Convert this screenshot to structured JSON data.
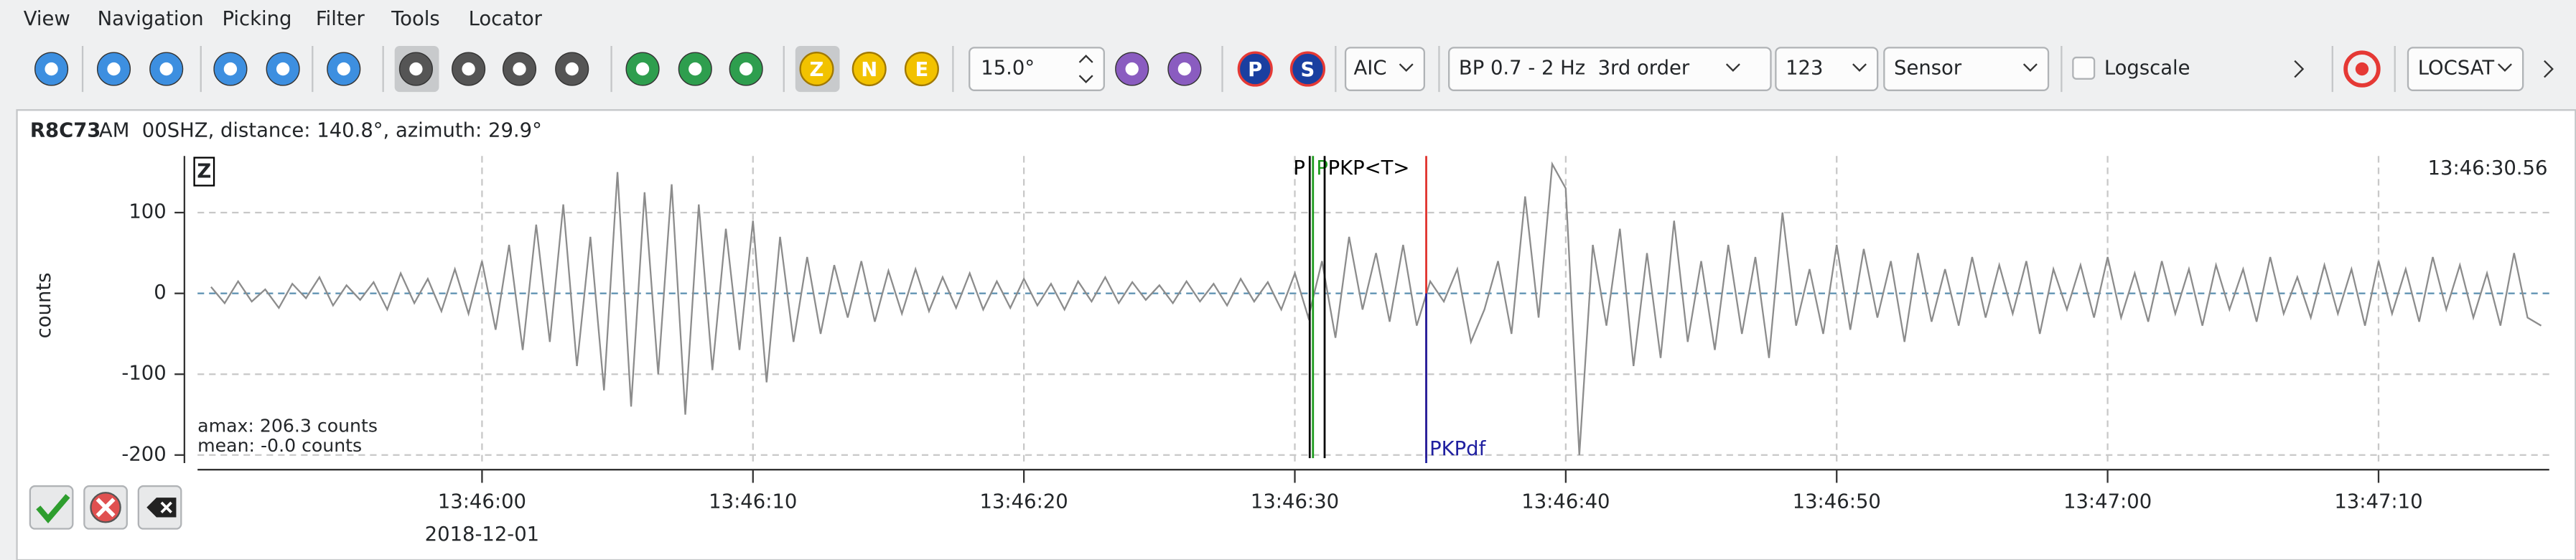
{
  "menu": [
    "View",
    "Navigation",
    "Picking",
    "Filter",
    "Tools",
    "Locator"
  ],
  "toolbar": {
    "component_buttons": [
      "Z",
      "N",
      "E"
    ],
    "angle": "15.0°",
    "picker": "AIC",
    "filter": "BP 0.7 - 2 Hz  3rd order",
    "stream": "123",
    "unit": "Sensor",
    "logscale": "Logscale",
    "phase_buttons": [
      "P",
      "S"
    ],
    "locator": "LOCSAT"
  },
  "trace": {
    "station": "R8C73",
    "info": "AM  00SHZ, distance: 140.8°, azimuth: 29.9°"
  },
  "chart_data": {
    "type": "line",
    "component": "Z",
    "time_label": "13:46:30.56",
    "y_label": "counts",
    "date_label": "2018-12-01",
    "annotations": [
      "amax: 206.3 counts",
      "mean: -0.0 counts"
    ],
    "color": "#8c8c8c",
    "xlim": [
      -10.5,
      76.3
    ],
    "ylim": [
      -210,
      170
    ],
    "xticks": [
      {
        "value": 0,
        "label": "13:46:00"
      },
      {
        "value": 10,
        "label": "13:46:10"
      },
      {
        "value": 20,
        "label": "13:46:20"
      },
      {
        "value": 30,
        "label": "13:46:30"
      },
      {
        "value": 40,
        "label": "13:46:40"
      },
      {
        "value": 50,
        "label": "13:46:50"
      },
      {
        "value": 60,
        "label": "13:47:00"
      },
      {
        "value": 70,
        "label": "13:47:10"
      }
    ],
    "yticks": [
      100,
      0,
      -100,
      -200
    ],
    "grid": true,
    "picks": [
      {
        "label": "P",
        "color": "#000000",
        "x": 30.55
      },
      {
        "label": "P",
        "color": "#1a9a1a",
        "x": 30.67
      },
      {
        "label": "PKP<T>",
        "color": "#000000",
        "x": 31.1
      },
      {
        "color": "#e0302a",
        "x": 34.85
      },
      {
        "label": "PKPdf",
        "color": "#2020a0",
        "x": 34.85
      }
    ],
    "x": [
      -10,
      -9.5,
      -9,
      -8.5,
      -8,
      -7.5,
      -7,
      -6.5,
      -6,
      -5.5,
      -5,
      -4.5,
      -4,
      -3.5,
      -3,
      -2.5,
      -2,
      -1.5,
      -1,
      -0.5,
      0,
      0.5,
      1,
      1.5,
      2,
      2.5,
      3,
      3.5,
      4,
      4.5,
      5,
      5.5,
      6,
      6.5,
      7,
      7.5,
      8,
      8.5,
      9,
      9.5,
      10,
      10.5,
      11,
      11.5,
      12,
      12.5,
      13,
      13.5,
      14,
      14.5,
      15,
      15.5,
      16,
      16.5,
      17,
      17.5,
      18,
      18.5,
      19,
      19.5,
      20,
      20.5,
      21,
      21.5,
      22,
      22.5,
      23,
      23.5,
      24,
      24.5,
      25,
      25.5,
      26,
      26.5,
      27,
      27.5,
      28,
      28.5,
      29,
      29.5,
      30,
      30.5,
      31,
      31.5,
      32,
      32.5,
      33,
      33.5,
      34,
      34.5,
      35,
      35.5,
      36,
      36.5,
      37,
      37.5,
      38,
      38.5,
      39,
      39.5,
      40,
      40.5,
      41,
      41.5,
      42,
      42.5,
      43,
      43.5,
      44,
      44.5,
      45,
      45.5,
      46,
      46.5,
      47,
      47.5,
      48,
      48.5,
      49,
      49.5,
      50,
      50.5,
      51,
      51.5,
      52,
      52.5,
      53,
      53.5,
      54,
      54.5,
      55,
      55.5,
      56,
      56.5,
      57,
      57.5,
      58,
      58.5,
      59,
      59.5,
      60,
      60.5,
      61,
      61.5,
      62,
      62.5,
      63,
      63.5,
      64,
      64.5,
      65,
      65.5,
      66,
      66.5,
      67,
      67.5,
      68,
      68.5,
      69,
      69.5,
      70,
      70.5,
      71,
      71.5,
      72,
      72.5,
      73,
      73.5,
      74,
      74.5,
      75,
      75.5,
      76
    ],
    "values": [
      8,
      -12,
      15,
      -10,
      5,
      -18,
      12,
      -6,
      20,
      -15,
      10,
      -8,
      14,
      -20,
      25,
      -12,
      18,
      -22,
      30,
      -25,
      40,
      -45,
      60,
      -70,
      85,
      -60,
      110,
      -90,
      70,
      -120,
      150,
      -140,
      125,
      -100,
      135,
      -150,
      110,
      -95,
      80,
      -70,
      90,
      -110,
      70,
      -60,
      45,
      -50,
      35,
      -30,
      40,
      -35,
      28,
      -25,
      30,
      -22,
      20,
      -18,
      25,
      -20,
      15,
      -18,
      18,
      -15,
      12,
      -20,
      15,
      -10,
      20,
      -12,
      14,
      -8,
      10,
      -12,
      15,
      -10,
      12,
      -15,
      18,
      -10,
      14,
      -20,
      25,
      -30,
      40,
      -55,
      70,
      -20,
      50,
      -35,
      60,
      -40,
      15,
      -10,
      30,
      -60,
      -20,
      40,
      -50,
      120,
      -30,
      160,
      130,
      -200,
      60,
      -40,
      80,
      -90,
      50,
      -80,
      90,
      -60,
      40,
      -70,
      60,
      -50,
      45,
      -80,
      100,
      -40,
      30,
      -50,
      60,
      -45,
      55,
      -30,
      40,
      -60,
      50,
      -35,
      30,
      -40,
      45,
      -30,
      35,
      -25,
      40,
      -50,
      30,
      -20,
      35,
      -30,
      45,
      -30,
      25,
      -35,
      40,
      -25,
      30,
      -40,
      35,
      -20,
      30,
      -35,
      45,
      -25,
      20,
      -30,
      35,
      -25,
      30,
      -40,
      40,
      -25,
      30,
      -35,
      45,
      -20,
      35,
      -30,
      25,
      -40,
      50,
      -30,
      -40
    ]
  }
}
